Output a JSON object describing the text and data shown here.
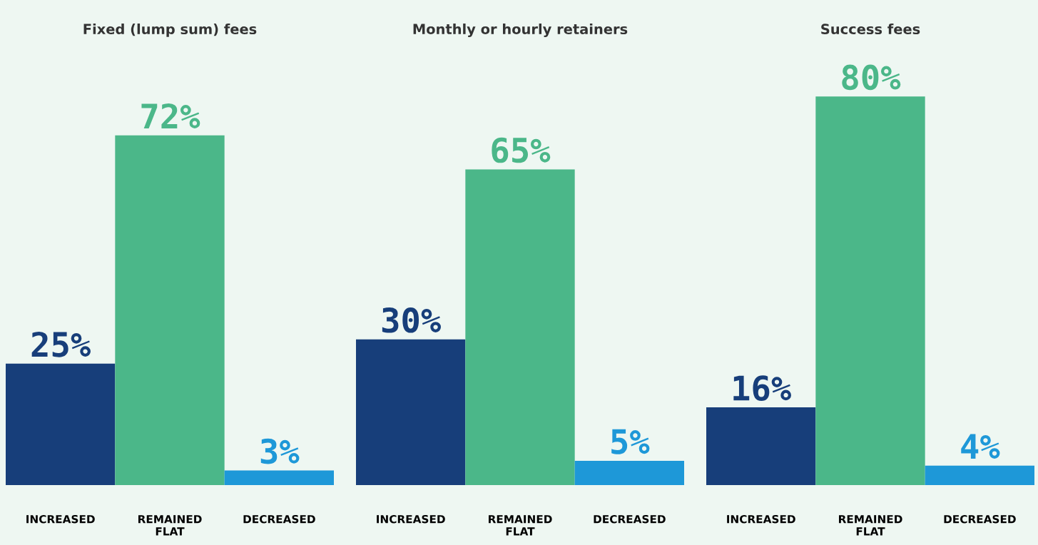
{
  "chart_data": [
    {
      "type": "bar",
      "title": "Fixed (lump sum) fees",
      "categories": [
        "INCREASED",
        "REMAINED FLAT",
        "DECREASED"
      ],
      "values": [
        25,
        72,
        3
      ],
      "colors": [
        "#173e7a",
        "#4bb789",
        "#1e98d8"
      ],
      "value_labels": [
        "25%",
        "72%",
        "3%"
      ]
    },
    {
      "type": "bar",
      "title": "Monthly or hourly retainers",
      "categories": [
        "INCREASED",
        "REMAINED FLAT",
        "DECREASED"
      ],
      "values": [
        30,
        65,
        5
      ],
      "colors": [
        "#173e7a",
        "#4bb789",
        "#1e98d8"
      ],
      "value_labels": [
        "30%",
        "65%",
        "5%"
      ]
    },
    {
      "type": "bar",
      "title": "Success fees",
      "categories": [
        "INCREASED",
        "REMAINED FLAT",
        "DECREASED"
      ],
      "values": [
        16,
        80,
        4
      ],
      "colors": [
        "#173e7a",
        "#4bb789",
        "#1e98d8"
      ],
      "value_labels": [
        "16%",
        "80%",
        "4%"
      ]
    }
  ]
}
